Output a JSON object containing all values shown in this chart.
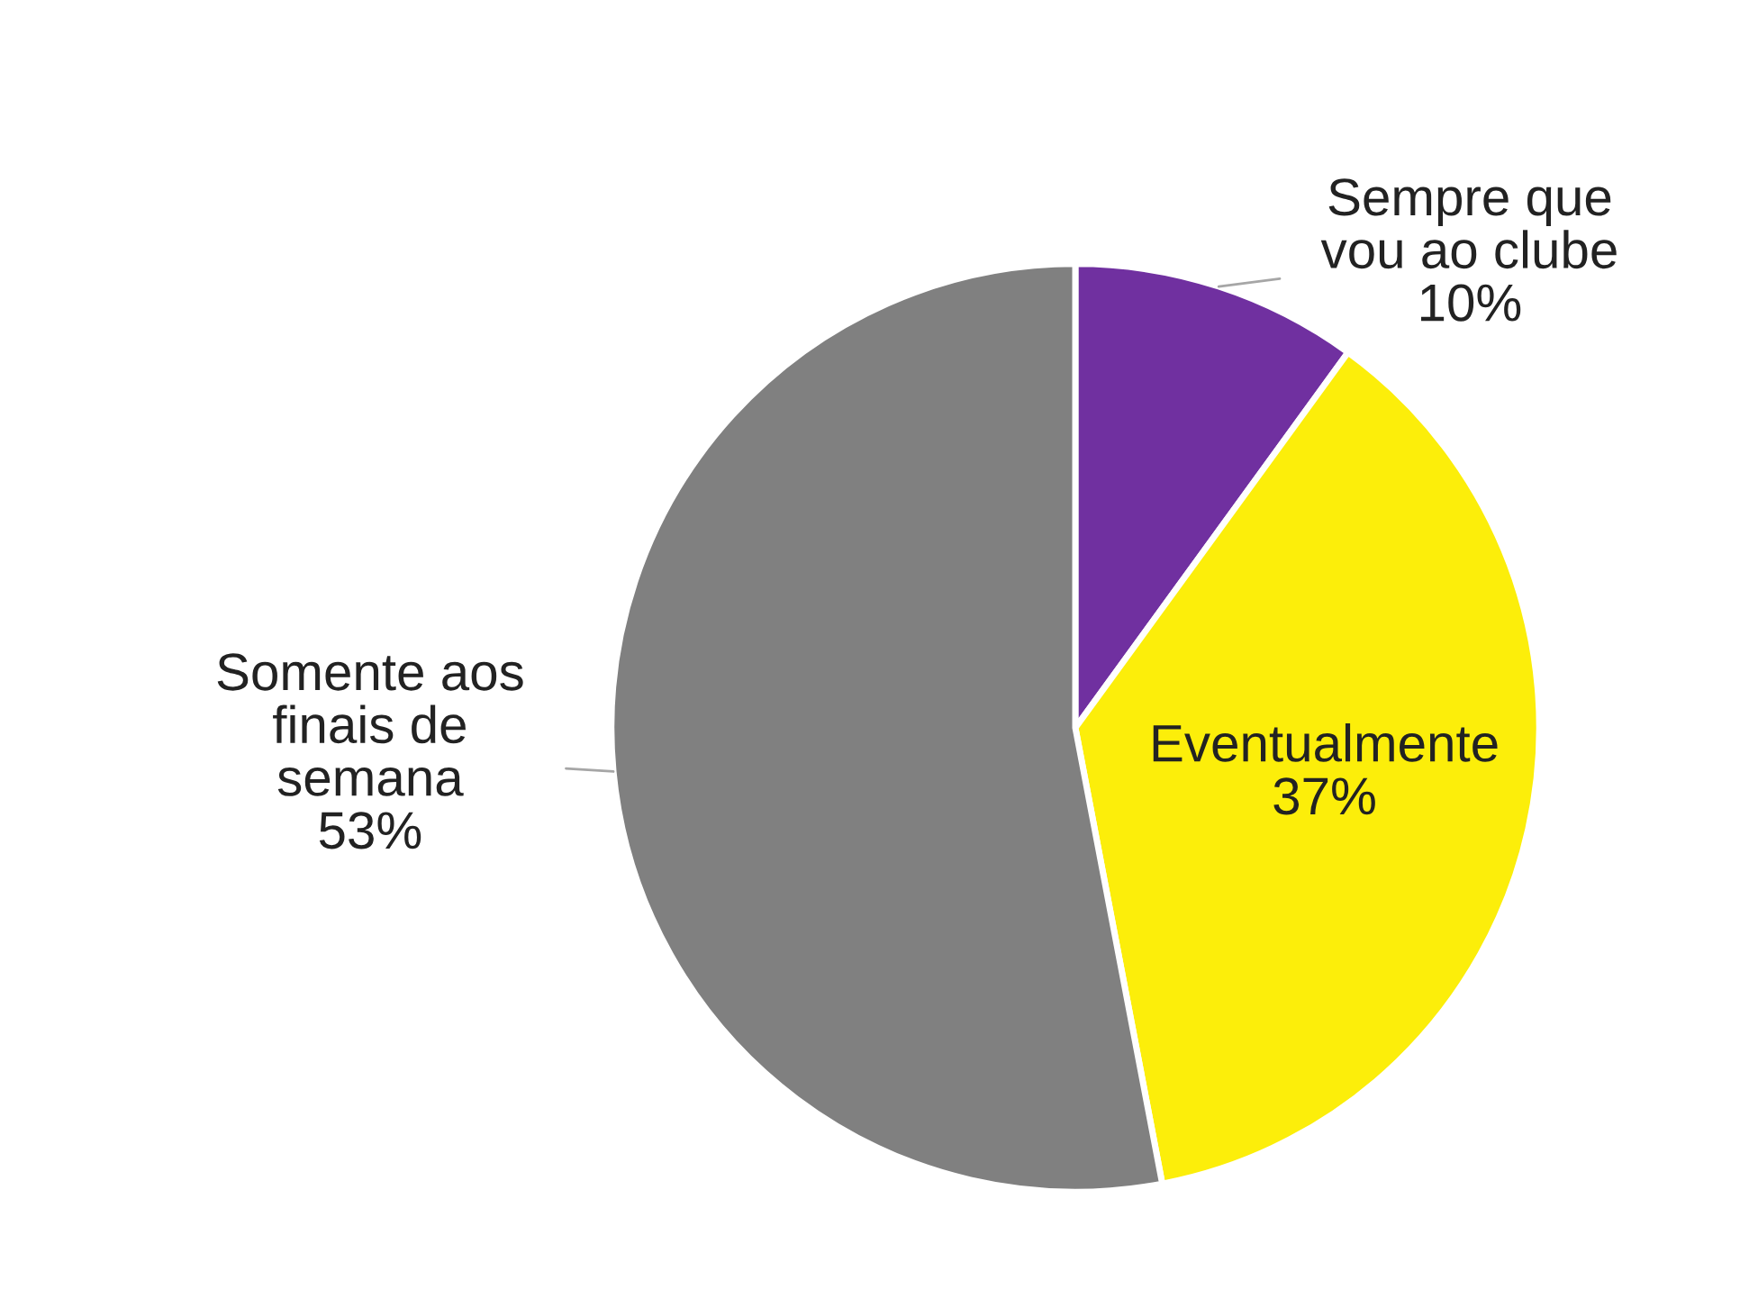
{
  "chart_data": {
    "type": "pie",
    "categories": [
      "Sempre que\nvou ao clube",
      "Eventualmente",
      "Somente aos\nfinais de\nsemana"
    ],
    "values": [
      10,
      37,
      53
    ],
    "value_labels": [
      "10%",
      "37%",
      "53%"
    ],
    "colors": [
      "#7030a0",
      "#fcee0a",
      "#808080"
    ]
  }
}
